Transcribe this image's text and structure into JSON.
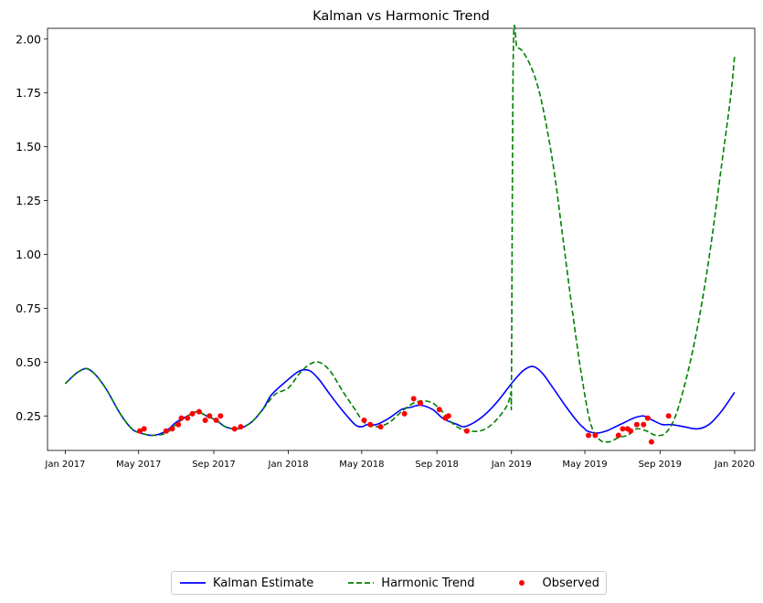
{
  "chart_data": {
    "type": "line",
    "title": "Kalman vs Harmonic Trend",
    "xlabel": "",
    "ylabel": "",
    "xlim": [
      "2016-12-03",
      "2020-02-03"
    ],
    "ylim": [
      0.09,
      2.05
    ],
    "x_ticks": [
      {
        "date": "2017-01-01",
        "label": "Jan 2017"
      },
      {
        "date": "2017-05-01",
        "label": "May 2017"
      },
      {
        "date": "2017-09-01",
        "label": "Sep 2017"
      },
      {
        "date": "2018-01-01",
        "label": "Jan 2018"
      },
      {
        "date": "2018-05-01",
        "label": "May 2018"
      },
      {
        "date": "2018-09-01",
        "label": "Sep 2018"
      },
      {
        "date": "2019-01-01",
        "label": "Jan 2019"
      },
      {
        "date": "2019-05-01",
        "label": "May 2019"
      },
      {
        "date": "2019-09-01",
        "label": "Sep 2019"
      },
      {
        "date": "2020-01-01",
        "label": "Jan 2020"
      }
    ],
    "y_ticks": [
      {
        "value": 0.25,
        "label": "0.25"
      },
      {
        "value": 0.5,
        "label": "0.50"
      },
      {
        "value": 0.75,
        "label": "0.75"
      },
      {
        "value": 1.0,
        "label": "1.00"
      },
      {
        "value": 1.25,
        "label": "1.25"
      },
      {
        "value": 1.5,
        "label": "1.50"
      },
      {
        "value": 1.75,
        "label": "1.75"
      },
      {
        "value": 2.0,
        "label": "2.00"
      }
    ],
    "grid": false,
    "legend_position": "bottom-center",
    "series": [
      {
        "name": "Kalman Estimate",
        "style": "solid",
        "color": "#0000ff",
        "x": [
          "2017-01-01",
          "2017-01-20",
          "2017-02-05",
          "2017-02-20",
          "2017-03-10",
          "2017-04-01",
          "2017-04-20",
          "2017-05-05",
          "2017-05-25",
          "2017-06-15",
          "2017-07-01",
          "2017-07-20",
          "2017-08-05",
          "2017-08-20",
          "2017-09-05",
          "2017-09-20",
          "2017-10-10",
          "2017-11-01",
          "2017-11-20",
          "2017-12-05",
          "2018-01-01",
          "2018-01-20",
          "2018-02-05",
          "2018-02-20",
          "2018-03-10",
          "2018-04-01",
          "2018-04-20",
          "2018-05-01",
          "2018-05-10",
          "2018-05-25",
          "2018-06-15",
          "2018-07-05",
          "2018-07-20",
          "2018-08-05",
          "2018-08-25",
          "2018-09-10",
          "2018-09-25",
          "2018-10-05",
          "2018-10-15",
          "2018-11-01",
          "2018-11-20",
          "2018-12-10",
          "2019-01-01",
          "2019-01-20",
          "2019-02-05",
          "2019-02-20",
          "2019-03-10",
          "2019-04-01",
          "2019-04-20",
          "2019-05-01",
          "2019-05-05",
          "2019-05-20",
          "2019-06-05",
          "2019-06-20",
          "2019-07-05",
          "2019-07-20",
          "2019-08-05",
          "2019-08-20",
          "2019-09-05",
          "2019-09-20",
          "2019-10-10",
          "2019-11-01",
          "2019-11-20",
          "2019-12-10",
          "2020-01-01"
        ],
        "y": [
          0.4,
          0.45,
          0.47,
          0.44,
          0.37,
          0.26,
          0.19,
          0.17,
          0.16,
          0.18,
          0.22,
          0.25,
          0.27,
          0.25,
          0.23,
          0.2,
          0.19,
          0.22,
          0.28,
          0.35,
          0.42,
          0.46,
          0.46,
          0.42,
          0.35,
          0.27,
          0.21,
          0.2,
          0.21,
          0.21,
          0.24,
          0.28,
          0.29,
          0.3,
          0.28,
          0.24,
          0.22,
          0.21,
          0.2,
          0.22,
          0.26,
          0.32,
          0.4,
          0.46,
          0.48,
          0.45,
          0.38,
          0.29,
          0.22,
          0.19,
          0.18,
          0.17,
          0.18,
          0.2,
          0.22,
          0.24,
          0.25,
          0.23,
          0.21,
          0.21,
          0.2,
          0.19,
          0.21,
          0.27,
          0.36
        ]
      },
      {
        "name": "Harmonic Trend",
        "style": "dashed",
        "color": "#008000",
        "x": [
          "2017-01-01",
          "2017-01-20",
          "2017-02-05",
          "2017-02-20",
          "2017-03-10",
          "2017-04-01",
          "2017-04-20",
          "2017-05-05",
          "2017-05-25",
          "2017-06-15",
          "2017-07-01",
          "2017-07-20",
          "2017-08-05",
          "2017-08-20",
          "2017-09-05",
          "2017-09-20",
          "2017-10-10",
          "2017-11-01",
          "2017-11-20",
          "2017-12-10",
          "2018-01-01",
          "2018-01-20",
          "2018-02-05",
          "2018-02-20",
          "2018-03-10",
          "2018-04-01",
          "2018-04-20",
          "2018-05-05",
          "2018-05-25",
          "2018-06-15",
          "2018-07-05",
          "2018-07-25",
          "2018-08-10",
          "2018-08-25",
          "2018-09-10",
          "2018-09-25",
          "2018-10-10",
          "2018-10-25",
          "2018-11-10",
          "2018-11-25",
          "2018-12-10",
          "2018-12-25",
          "2018-12-31",
          "2019-01-01",
          "2019-01-04",
          "2019-01-10",
          "2019-01-20",
          "2019-02-05",
          "2019-02-20",
          "2019-03-10",
          "2019-03-25",
          "2019-04-10",
          "2019-04-25",
          "2019-05-10",
          "2019-05-25",
          "2019-06-10",
          "2019-06-25",
          "2019-07-10",
          "2019-07-25",
          "2019-08-10",
          "2019-08-25",
          "2019-09-10",
          "2019-09-25",
          "2019-10-10",
          "2019-10-25",
          "2019-11-10",
          "2019-11-25",
          "2019-12-10",
          "2019-12-25",
          "2020-01-01"
        ],
        "y": [
          0.4,
          0.45,
          0.47,
          0.44,
          0.37,
          0.26,
          0.19,
          0.17,
          0.16,
          0.17,
          0.21,
          0.25,
          0.27,
          0.25,
          0.23,
          0.2,
          0.19,
          0.22,
          0.28,
          0.35,
          0.38,
          0.45,
          0.49,
          0.5,
          0.46,
          0.36,
          0.28,
          0.22,
          0.2,
          0.22,
          0.27,
          0.31,
          0.32,
          0.31,
          0.27,
          0.22,
          0.19,
          0.18,
          0.18,
          0.2,
          0.24,
          0.3,
          0.36,
          0.4,
          1.95,
          1.96,
          1.94,
          1.85,
          1.7,
          1.42,
          1.1,
          0.75,
          0.45,
          0.22,
          0.14,
          0.13,
          0.15,
          0.16,
          0.19,
          0.18,
          0.16,
          0.17,
          0.24,
          0.38,
          0.56,
          0.8,
          1.08,
          1.4,
          1.72,
          1.92
        ]
      },
      {
        "name": "Observed",
        "style": "scatter",
        "color": "#ff0000",
        "x": [
          "2017-05-03",
          "2017-05-10",
          "2017-06-15",
          "2017-06-25",
          "2017-07-05",
          "2017-07-10",
          "2017-07-20",
          "2017-07-28",
          "2017-08-08",
          "2017-08-18",
          "2017-08-25",
          "2017-09-05",
          "2017-09-12",
          "2017-10-05",
          "2017-10-15",
          "2018-05-05",
          "2018-05-15",
          "2018-06-01",
          "2018-07-10",
          "2018-07-25",
          "2018-08-05",
          "2018-09-05",
          "2018-09-15",
          "2018-09-20",
          "2018-10-20",
          "2019-05-07",
          "2019-05-18",
          "2019-06-25",
          "2019-07-02",
          "2019-07-10",
          "2019-07-15",
          "2019-07-25",
          "2019-08-05",
          "2019-08-12",
          "2019-08-18",
          "2019-09-15"
        ],
        "y": [
          0.18,
          0.19,
          0.18,
          0.19,
          0.21,
          0.24,
          0.24,
          0.26,
          0.27,
          0.23,
          0.25,
          0.23,
          0.25,
          0.19,
          0.2,
          0.23,
          0.21,
          0.2,
          0.26,
          0.33,
          0.31,
          0.28,
          0.24,
          0.25,
          0.18,
          0.16,
          0.16,
          0.16,
          0.19,
          0.19,
          0.18,
          0.21,
          0.21,
          0.24,
          0.13,
          0.25
        ]
      }
    ]
  },
  "legend": {
    "items": [
      {
        "label": "Kalman Estimate"
      },
      {
        "label": "Harmonic Trend"
      },
      {
        "label": "Observed"
      }
    ]
  }
}
